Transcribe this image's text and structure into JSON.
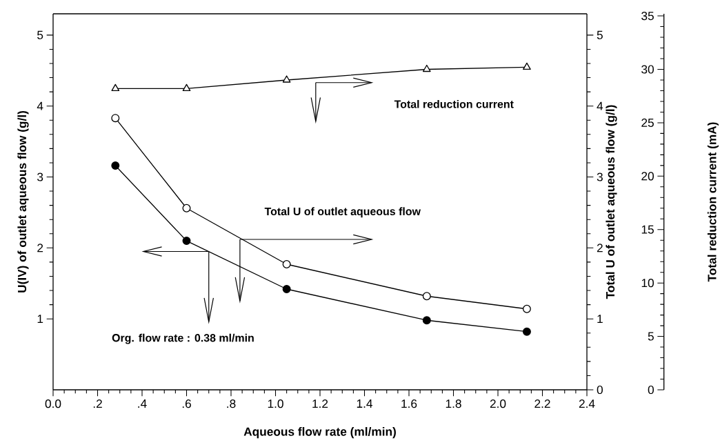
{
  "chart_data": {
    "type": "line",
    "xlabel": "Aqueous flow rate (ml/min)",
    "ylabel": "U(IV) of outlet aqueous flow (g/l)",
    "y2label": "Total U of outlet aqueous flow (g/l)",
    "y3label": "Total reduction current (mA)",
    "x": [
      0.28,
      0.6,
      1.05,
      1.68,
      2.13
    ],
    "xlim": [
      0,
      2.4
    ],
    "xticks": [
      {
        "value": 0,
        "label": "0.0"
      },
      {
        "value": 0.2,
        "label": ".2"
      },
      {
        "value": 0.4,
        "label": ".4"
      },
      {
        "value": 0.6,
        "label": ".6"
      },
      {
        "value": 0.8,
        "label": ".8"
      },
      {
        "value": 1.0,
        "label": "1.0"
      },
      {
        "value": 1.2,
        "label": "1.2"
      },
      {
        "value": 1.4,
        "label": "1.4"
      },
      {
        "value": 1.6,
        "label": "1.6"
      },
      {
        "value": 1.8,
        "label": "1.8"
      },
      {
        "value": 2.0,
        "label": "2.0"
      },
      {
        "value": 2.2,
        "label": "2.2"
      },
      {
        "value": 2.4,
        "label": "2.4"
      }
    ],
    "ylim": [
      0,
      5.3
    ],
    "yticks": [
      1,
      2,
      3,
      4,
      5
    ],
    "y2lim": [
      0,
      5.3
    ],
    "y2ticks": [
      0,
      1,
      2,
      3,
      4,
      5
    ],
    "y3lim": [
      0,
      35.2
    ],
    "y3ticks": [
      0,
      5,
      10,
      15,
      20,
      25,
      30,
      35
    ],
    "series": [
      {
        "color": "#000000",
        "marker": "circle",
        "values": [
          3.16,
          2.1,
          1.42,
          0.98,
          0.82
        ]
      },
      {
        "name": "Total U of outlet aqueous flow",
        "axis": "y2",
        "color": "#000000",
        "marker": "circle",
        "values": [
          3.83,
          2.56,
          1.77,
          1.32,
          1.14
        ]
      },
      {
        "name": "Total reduction current",
        "axis": "y3",
        "color": "#000000",
        "marker": "triangle",
        "values": [
          28.2,
          28.2,
          29.0,
          30.0,
          30.2
        ]
      }
    ],
    "annotations": [
      {
        "text": "Org. flow rate : 0.38 ml/min",
        "x": 0.7,
        "y": 1.95
      }
    ]
  }
}
